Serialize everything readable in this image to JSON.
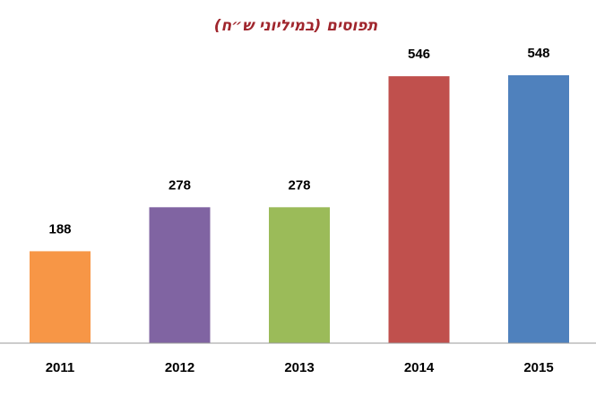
{
  "chart_data": {
    "type": "bar",
    "title": "תפוסים (במיליוני ש״ח)",
    "xlabel": "",
    "ylabel": "",
    "categories": [
      "2011",
      "2012",
      "2013",
      "2014",
      "2015"
    ],
    "values": [
      188,
      278,
      278,
      546,
      548
    ],
    "colors": [
      "#f79646",
      "#8064a2",
      "#9bbb59",
      "#c0504d",
      "#4f81bd"
    ],
    "ylim": [
      0,
      600
    ],
    "grid": false,
    "legend": "none"
  }
}
